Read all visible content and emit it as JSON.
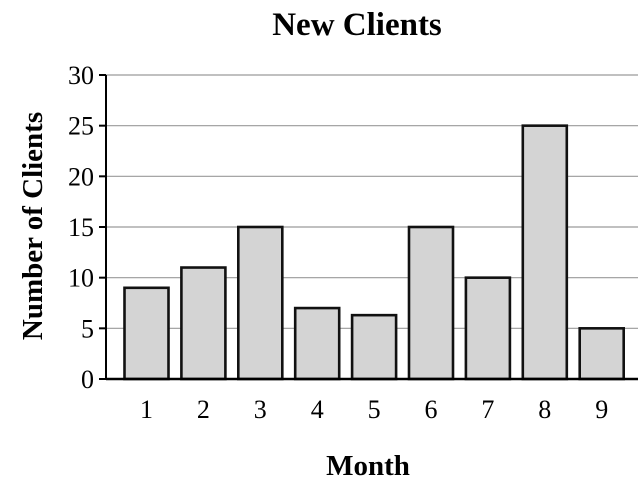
{
  "chart_data": {
    "type": "bar",
    "title": "New Clients",
    "xlabel": "Month",
    "ylabel": "Number of Clients",
    "categories": [
      "1",
      "2",
      "3",
      "4",
      "5",
      "6",
      "7",
      "8",
      "9"
    ],
    "values": [
      9,
      11,
      15,
      7,
      6.3,
      15,
      10,
      25,
      5
    ],
    "ylim": [
      0,
      30
    ],
    "yticks": [
      "0",
      "5",
      "10",
      "15",
      "20",
      "25",
      "30"
    ],
    "grid": true,
    "legend": "none",
    "colors": {
      "bar_fill": "#d4d4d4",
      "bar_stroke": "#111111",
      "grid": "#9a9a9a",
      "axis": "#000000"
    }
  }
}
